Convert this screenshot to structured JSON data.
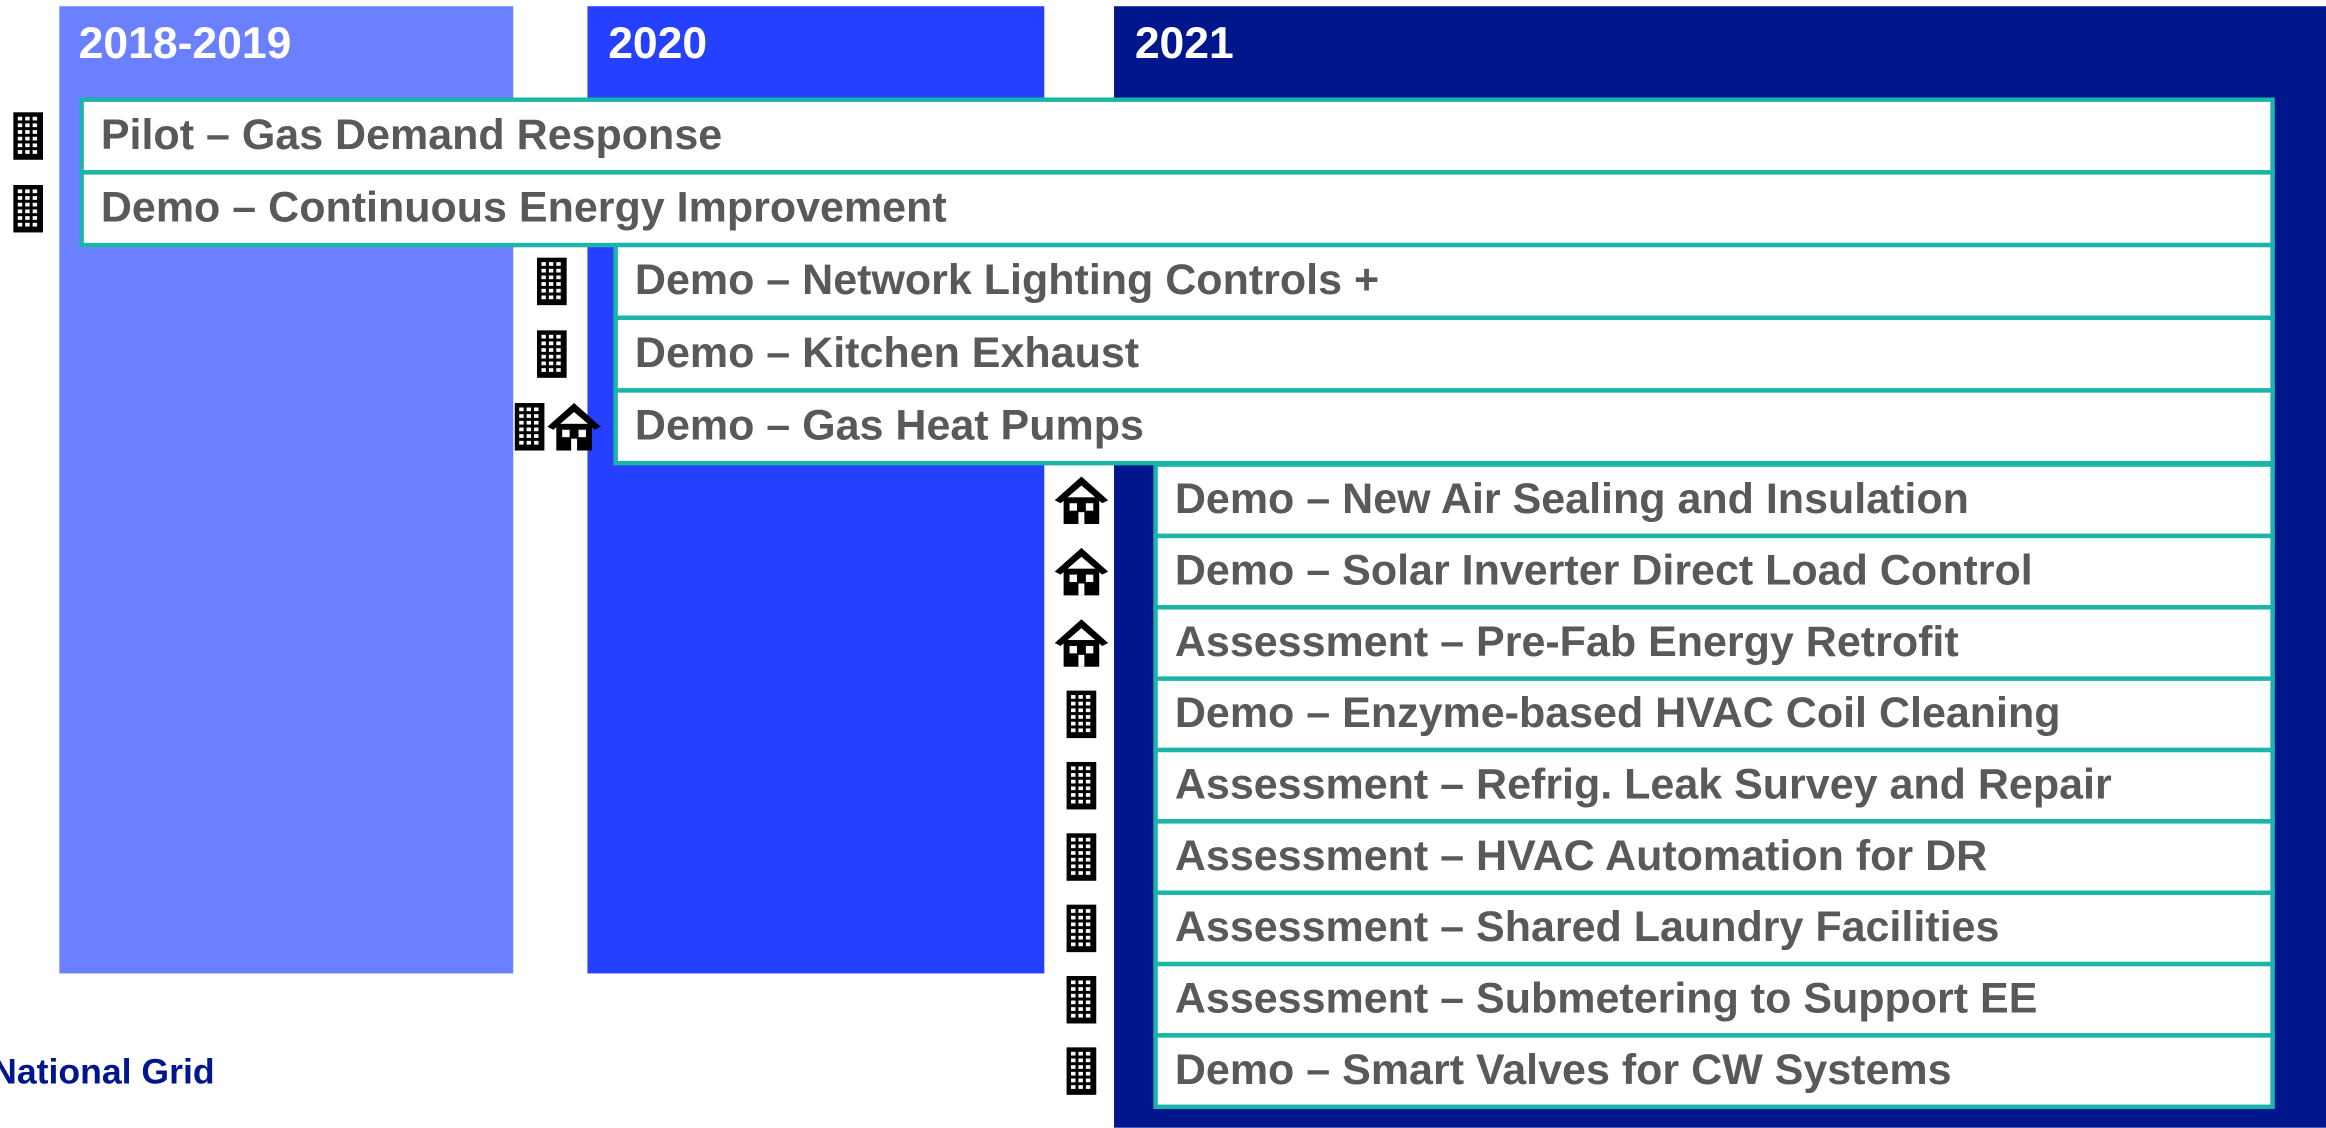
{
  "columns": [
    {
      "label": "2018-2019"
    },
    {
      "label": "2020"
    },
    {
      "label": "2021"
    }
  ],
  "items": [
    {
      "label": "Pilot – Gas Demand Response"
    },
    {
      "label": "Demo – Continuous Energy Improvement"
    },
    {
      "label": "Demo – Network Lighting Controls +"
    },
    {
      "label": "Demo – Kitchen Exhaust"
    },
    {
      "label": "Demo – Gas Heat Pumps"
    },
    {
      "label": "Demo – New Air Sealing and Insulation"
    },
    {
      "label": "Demo – Solar Inverter Direct Load Control"
    },
    {
      "label": "Assessment – Pre-Fab Energy Retrofit"
    },
    {
      "label": "Demo – Enzyme-based HVAC Coil Cleaning"
    },
    {
      "label": "Assessment – Refrig. Leak Survey and Repair"
    },
    {
      "label": "Assessment – HVAC Automation for DR"
    },
    {
      "label": "Assessment – Shared Laundry Facilities"
    },
    {
      "label": "Assessment – Submetering to Support EE"
    },
    {
      "label": "Demo – Smart Valves for CW Systems"
    }
  ],
  "footer": "National Grid"
}
